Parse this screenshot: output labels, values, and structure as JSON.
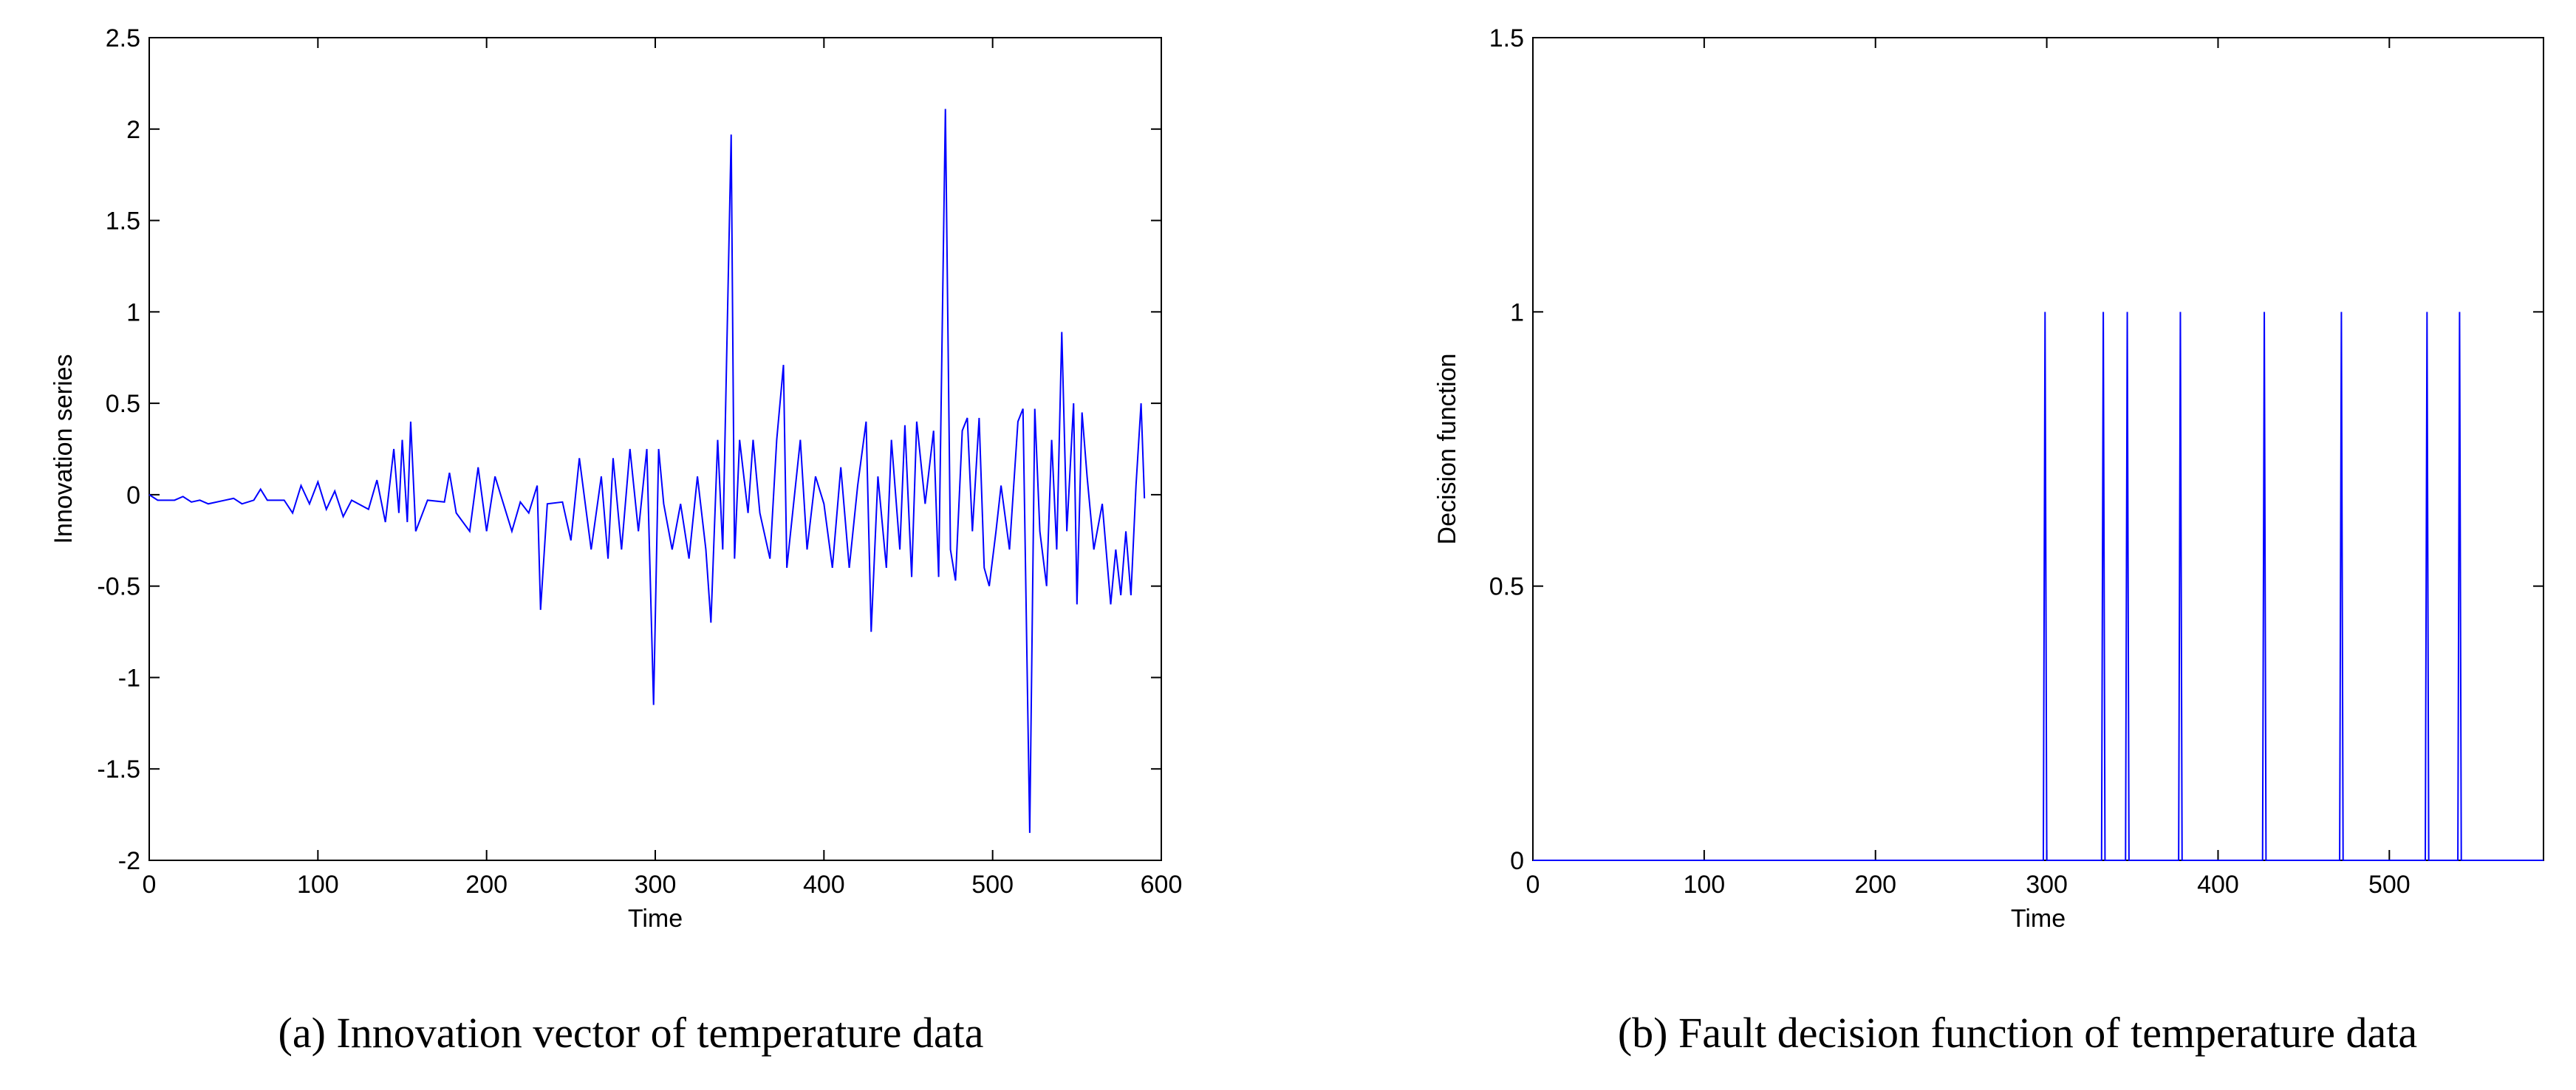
{
  "chart_data": [
    {
      "type": "line",
      "xlabel": "Time",
      "ylabel": "Innovation series",
      "caption": "(a)  Innovation vector of temperature data",
      "xlim": [
        0,
        600
      ],
      "xticks": [
        0,
        100,
        200,
        300,
        400,
        500,
        600
      ],
      "ylim": [
        -2,
        2.5
      ],
      "yticks": [
        -2,
        -1.5,
        -1,
        -0.5,
        0,
        0.5,
        1,
        1.5,
        2,
        2.5
      ],
      "color": "#0000ff",
      "x": [
        0,
        5,
        15,
        20,
        25,
        30,
        35,
        45,
        50,
        55,
        62,
        66,
        70,
        80,
        85,
        90,
        95,
        100,
        105,
        110,
        115,
        120,
        130,
        135,
        140,
        145,
        148,
        150,
        153,
        155,
        158,
        165,
        175,
        178,
        182,
        190,
        195,
        200,
        205,
        210,
        215,
        220,
        225,
        230,
        232,
        236,
        245,
        250,
        255,
        262,
        268,
        272,
        275,
        280,
        285,
        290,
        295,
        299,
        302,
        305,
        310,
        315,
        320,
        325,
        330,
        333,
        337,
        340,
        345,
        347,
        350,
        355,
        358,
        362,
        368,
        372,
        376,
        378,
        382,
        386,
        390,
        395,
        400,
        405,
        410,
        415,
        420,
        425,
        428,
        432,
        437,
        440,
        445,
        448,
        452,
        455,
        460,
        465,
        468,
        472,
        475,
        478,
        482,
        485,
        488,
        492,
        495,
        498,
        502,
        505,
        510,
        515,
        518,
        522,
        525,
        528,
        532,
        535,
        538,
        541,
        544,
        548,
        550,
        553,
        556,
        560,
        565,
        570,
        573,
        576,
        579,
        582,
        585,
        588,
        590
      ],
      "values": [
        0,
        -0.03,
        -0.03,
        -0.01,
        -0.04,
        -0.03,
        -0.05,
        -0.03,
        -0.02,
        -0.05,
        -0.03,
        0.03,
        -0.03,
        -0.03,
        -0.1,
        0.05,
        -0.05,
        0.07,
        -0.08,
        0.02,
        -0.12,
        -0.03,
        -0.08,
        0.08,
        -0.15,
        0.25,
        -0.1,
        0.3,
        -0.15,
        0.4,
        -0.2,
        -0.03,
        -0.04,
        0.12,
        -0.1,
        -0.2,
        0.15,
        -0.2,
        0.1,
        -0.05,
        -0.2,
        -0.04,
        -0.1,
        0.05,
        -0.63,
        -0.05,
        -0.04,
        -0.25,
        0.2,
        -0.3,
        0.1,
        -0.35,
        0.2,
        -0.3,
        0.25,
        -0.2,
        0.25,
        -1.15,
        0.25,
        -0.05,
        -0.3,
        -0.05,
        -0.35,
        0.1,
        -0.3,
        -0.7,
        0.3,
        -0.3,
        1.97,
        -0.35,
        0.3,
        -0.1,
        0.3,
        -0.1,
        -0.35,
        0.3,
        0.71,
        -0.4,
        -0.05,
        0.3,
        -0.3,
        0.1,
        -0.05,
        -0.4,
        0.15,
        -0.4,
        0.05,
        0.4,
        -0.75,
        0.1,
        -0.4,
        0.3,
        -0.3,
        0.38,
        -0.45,
        0.4,
        -0.05,
        0.35,
        -0.45,
        2.11,
        -0.3,
        -0.47,
        0.35,
        0.42,
        -0.2,
        0.42,
        -0.4,
        -0.5,
        -0.2,
        0.05,
        -0.3,
        0.4,
        0.47,
        -1.85,
        0.47,
        -0.2,
        -0.5,
        0.3,
        -0.3,
        0.89,
        -0.2,
        0.5,
        -0.6,
        0.45,
        0.1,
        -0.3,
        -0.05,
        -0.6,
        -0.3,
        -0.55,
        -0.2,
        -0.55,
        0.05,
        0.5,
        -0.02
      ]
    },
    {
      "type": "line",
      "xlabel": "Time",
      "ylabel": "Decision function",
      "caption": "(b)  Fault decision function of temperature data",
      "xlim": [
        0,
        590
      ],
      "xticks": [
        0,
        100,
        200,
        300,
        400,
        500
      ],
      "ylim": [
        0,
        1.5
      ],
      "yticks": [
        0,
        0.5,
        1,
        1.5
      ],
      "color": "#0000ff",
      "x": [
        0,
        298,
        299,
        300,
        332,
        333,
        334,
        346,
        347,
        348,
        377,
        378,
        379,
        426,
        427,
        428,
        471,
        472,
        473,
        521,
        522,
        523,
        540,
        541,
        542,
        590
      ],
      "values": [
        0,
        0,
        1,
        0,
        0,
        1,
        0,
        0,
        1,
        0,
        0,
        1,
        0,
        0,
        1,
        0,
        0,
        1,
        0,
        0,
        1,
        0,
        0,
        1,
        0,
        0
      ]
    }
  ]
}
